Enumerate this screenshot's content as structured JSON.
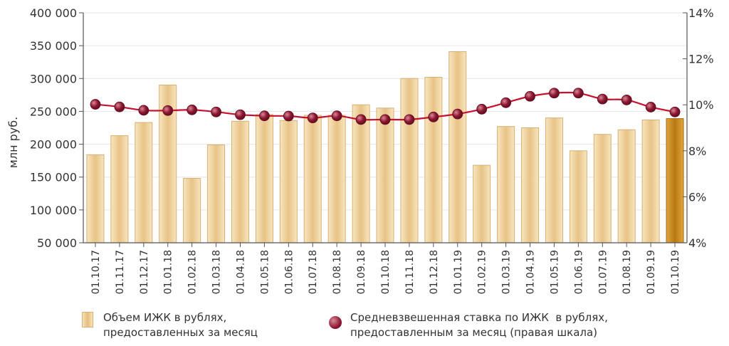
{
  "chart_data": {
    "type": "bar+line",
    "ylabel": "млн руб.",
    "y_left_ticks": [
      "400 000",
      "350 000",
      "300 000",
      "250 000",
      "200 000",
      "150 000",
      "100 000",
      "50 000"
    ],
    "y_right_ticks": [
      "14%",
      "12%",
      "10%",
      "8%",
      "6%",
      "4%"
    ],
    "ylim_left": [
      50000,
      400000
    ],
    "ylim_right": [
      4,
      14
    ],
    "categories": [
      "01.10.17",
      "01.11.17",
      "01.12.17",
      "01.01.18",
      "01.02.18",
      "01.03.18",
      "01.04.18",
      "01.05.18",
      "01.06.18",
      "01.07.18",
      "01.08.18",
      "01.09.18",
      "01.10.18",
      "01.11.18",
      "01.12.18",
      "01.01.19",
      "01.02.19",
      "01.03.19",
      "01.04.19",
      "01.05.19",
      "01.06.19",
      "01.07.19",
      "01.08.19",
      "01.09.19",
      "01.10.19"
    ],
    "series": [
      {
        "name": "Объем ИЖК в рублях, предоставленных за месяц",
        "type": "bar",
        "axis": "left",
        "values": [
          184000,
          213000,
          233000,
          290000,
          148000,
          199000,
          235000,
          245000,
          236000,
          244000,
          244000,
          260000,
          255000,
          300000,
          302000,
          341000,
          168000,
          227000,
          225000,
          240000,
          190000,
          215000,
          222000,
          237000,
          239000
        ]
      },
      {
        "name": "Средневзвешенная ставка по ИЖК в рублях, предоставленным за месяц (правая шкала)",
        "type": "line",
        "axis": "right",
        "values": [
          10.02,
          9.91,
          9.76,
          9.75,
          9.78,
          9.69,
          9.57,
          9.52,
          9.51,
          9.43,
          9.52,
          9.36,
          9.36,
          9.36,
          9.47,
          9.6,
          9.81,
          10.09,
          10.37,
          10.51,
          10.51,
          10.25,
          10.21,
          9.9,
          9.69
        ]
      }
    ],
    "legend": [
      "Объем ИЖК в рублях,",
      "предоставленных за месяц",
      "Средневзвешенная ставка по ИЖК  в рублях,",
      "предоставленным за месяц (правая шкала)"
    ],
    "colors": {
      "bar_light": "#f7e3b9",
      "bar_dark": "#e5bd7d",
      "bar_border": "#d6b074",
      "last_bar": "#c98a22",
      "line": "#c8102e",
      "marker": "#7b1030"
    }
  }
}
